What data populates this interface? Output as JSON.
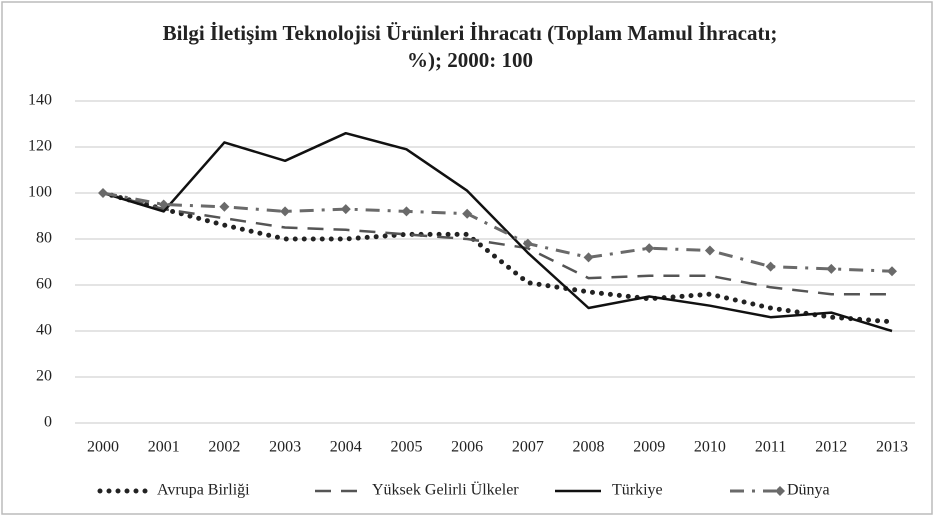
{
  "chart_data": {
    "type": "line",
    "title": "Bilgi İletişim Teknolojisi Ürünleri İhracatı (Toplam Mamul İhracatı; %); 2000: 100",
    "categories": [
      "2000",
      "2001",
      "2002",
      "2003",
      "2004",
      "2005",
      "2006",
      "2007",
      "2008",
      "2009",
      "2010",
      "2011",
      "2012",
      "2013"
    ],
    "series": [
      {
        "name": "Avrupa Birliği",
        "color": "#222222",
        "line_style": "dotted",
        "values": [
          100,
          93,
          86,
          80,
          80,
          82,
          82,
          61,
          57,
          54,
          56,
          50,
          46,
          44
        ]
      },
      {
        "name": "Yüksek Gelirli Ülkeler",
        "color": "#555555",
        "line_style": "dashed",
        "values": [
          100,
          93,
          89,
          85,
          84,
          82,
          80,
          76,
          63,
          64,
          64,
          59,
          56,
          56
        ]
      },
      {
        "name": "Türkiye",
        "color": "#111111",
        "line_style": "solid",
        "values": [
          100,
          92,
          122,
          114,
          126,
          119,
          101,
          74,
          50,
          55,
          51,
          46,
          48,
          40
        ]
      },
      {
        "name": "Dünya",
        "color": "#6a6a6a",
        "line_style": "dashdot",
        "marker": "diamond",
        "values": [
          100,
          95,
          94,
          92,
          93,
          92,
          91,
          78,
          72,
          76,
          75,
          68,
          67,
          66
        ]
      }
    ],
    "ylim": [
      0,
      140
    ],
    "yticks": [
      0,
      20,
      40,
      60,
      80,
      100,
      120,
      140
    ],
    "grid": true,
    "legend": "bottom"
  }
}
